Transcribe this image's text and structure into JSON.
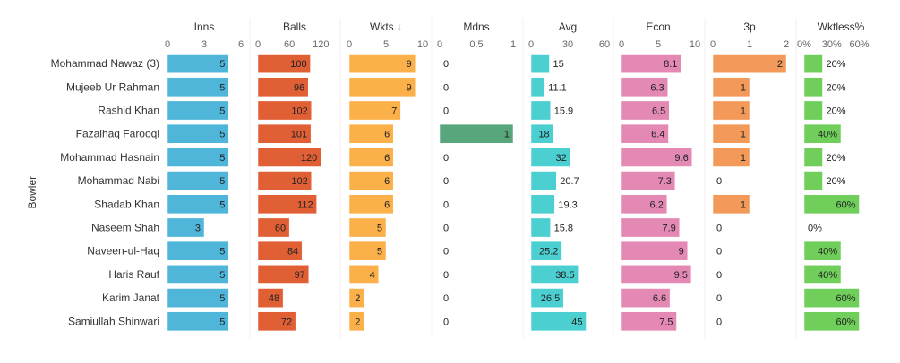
{
  "chart_data": {
    "type": "bar",
    "orientation": "horizontal",
    "y_axis_label": "Bowler",
    "bowlers": [
      "Mohammad Nawaz (3)",
      "Mujeeb Ur Rahman",
      "Rashid Khan",
      "Fazalhaq Farooqi",
      "Mohammad Hasnain",
      "Mohammad Nabi",
      "Shadab Khan",
      "Naseem Shah",
      "Naveen-ul-Haq",
      "Haris Rauf",
      "Karim Janat",
      "Samiullah Shinwari"
    ],
    "panels": [
      {
        "key": "inns",
        "title": "Inns",
        "color": "#4fb6d9",
        "ticks": [
          0,
          3,
          6
        ],
        "tick_labels": [
          "0",
          "3",
          "6"
        ],
        "domain": [
          0,
          6
        ],
        "values": [
          5,
          5,
          5,
          5,
          5,
          5,
          5,
          3,
          5,
          5,
          5,
          5
        ],
        "value_labels": [
          "5",
          "5",
          "5",
          "5",
          "5",
          "5",
          "5",
          "3",
          "5",
          "5",
          "5",
          "5"
        ]
      },
      {
        "key": "balls",
        "title": "Balls",
        "color": "#e05f34",
        "ticks": [
          0,
          60,
          120
        ],
        "tick_labels": [
          "0",
          "60",
          "120"
        ],
        "domain": [
          0,
          140
        ],
        "values": [
          100,
          96,
          102,
          101,
          120,
          102,
          112,
          60,
          84,
          97,
          48,
          72
        ],
        "value_labels": [
          "100",
          "96",
          "102",
          "101",
          "120",
          "102",
          "112",
          "60",
          "84",
          "97",
          "48",
          "72"
        ]
      },
      {
        "key": "wkts",
        "title": "Wkts ↓",
        "color": "#fbb04a",
        "ticks": [
          0,
          5,
          10
        ],
        "tick_labels": [
          "0",
          "5",
          "10"
        ],
        "domain": [
          0,
          10
        ],
        "values": [
          9,
          9,
          7,
          6,
          6,
          6,
          6,
          5,
          5,
          4,
          2,
          2
        ],
        "value_labels": [
          "9",
          "9",
          "7",
          "6",
          "6",
          "6",
          "6",
          "5",
          "5",
          "4",
          "2",
          "2"
        ]
      },
      {
        "key": "mdns",
        "title": "Mdns",
        "color": "#58a67c",
        "ticks": [
          0,
          0.5,
          1
        ],
        "tick_labels": [
          "0",
          "0.5",
          "1"
        ],
        "domain": [
          0,
          1
        ],
        "values": [
          0,
          0,
          0,
          1,
          0,
          0,
          0,
          0,
          0,
          0,
          0,
          0
        ],
        "value_labels": [
          "0",
          "0",
          "0",
          "1",
          "0",
          "0",
          "0",
          "0",
          "0",
          "0",
          "0",
          "0"
        ]
      },
      {
        "key": "avg",
        "title": "Avg",
        "color": "#4bcfd0",
        "ticks": [
          0,
          30,
          60
        ],
        "tick_labels": [
          "0",
          "30",
          "60"
        ],
        "domain": [
          0,
          60
        ],
        "values": [
          15,
          11.1,
          15.9,
          18,
          32,
          20.7,
          19.3,
          15.8,
          25.2,
          38.5,
          26.5,
          45
        ],
        "value_labels": [
          "15",
          "11.1",
          "15.9",
          "18",
          "32",
          "20.7",
          "19.3",
          "15.8",
          "25.2",
          "38.5",
          "26.5",
          "45"
        ]
      },
      {
        "key": "econ",
        "title": "Econ",
        "color": "#e389b4",
        "ticks": [
          0,
          5,
          10
        ],
        "tick_labels": [
          "0",
          "5",
          "10"
        ],
        "domain": [
          0,
          10
        ],
        "values": [
          8.1,
          6.3,
          6.5,
          6.4,
          9.6,
          7.3,
          6.2,
          7.9,
          9,
          9.5,
          6.6,
          7.5
        ],
        "value_labels": [
          "8.1",
          "6.3",
          "6.5",
          "6.4",
          "9.6",
          "7.3",
          "6.2",
          "7.9",
          "9",
          "9.5",
          "6.6",
          "7.5"
        ]
      },
      {
        "key": "threep",
        "title": "3p",
        "color": "#f39a5b",
        "ticks": [
          0,
          1,
          2
        ],
        "tick_labels": [
          "0",
          "1",
          "2"
        ],
        "domain": [
          0,
          2
        ],
        "values": [
          2,
          1,
          1,
          1,
          1,
          0,
          1,
          0,
          0,
          0,
          0,
          0
        ],
        "value_labels": [
          "2",
          "1",
          "1",
          "1",
          "1",
          "0",
          "1",
          "0",
          "0",
          "0",
          "0",
          "0"
        ]
      },
      {
        "key": "wktless",
        "title": "Wktless%",
        "color": "#6fcf5a",
        "ticks": [
          0,
          30,
          60
        ],
        "tick_labels": [
          "0%",
          "30%",
          "60%"
        ],
        "domain": [
          0,
          80
        ],
        "values": [
          20,
          20,
          20,
          40,
          20,
          20,
          60,
          0,
          40,
          40,
          60,
          60
        ],
        "value_labels": [
          "20%",
          "20%",
          "20%",
          "40%",
          "20%",
          "20%",
          "60%",
          "0%",
          "40%",
          "40%",
          "60%",
          "60%"
        ]
      }
    ]
  }
}
